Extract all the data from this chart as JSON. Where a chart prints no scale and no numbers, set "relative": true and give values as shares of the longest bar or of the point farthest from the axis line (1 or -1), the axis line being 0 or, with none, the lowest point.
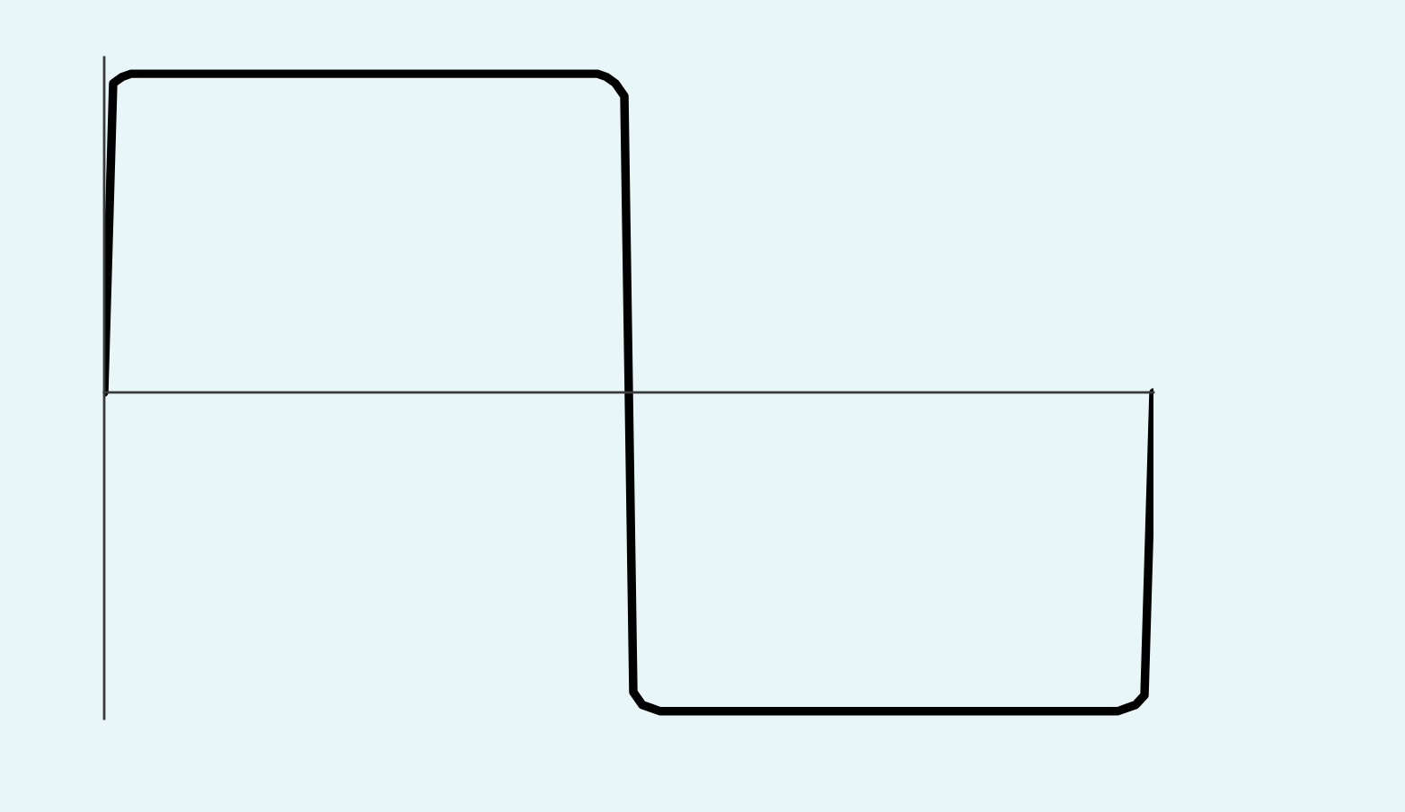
{
  "chart_data": {
    "type": "line",
    "relative": true,
    "categories": [
      null,
      null,
      null,
      null,
      null,
      null,
      null,
      null,
      null,
      null,
      null,
      null,
      null,
      null,
      null,
      null,
      null,
      null,
      null,
      null,
      null,
      null,
      null,
      null,
      null,
      null,
      null,
      null,
      null,
      null,
      null,
      null,
      null,
      null,
      null,
      null,
      null,
      null,
      null,
      null,
      null,
      null,
      null,
      null,
      null,
      null,
      null,
      null,
      null,
      null,
      null,
      null,
      null,
      null,
      null,
      null,
      null,
      null,
      null,
      null,
      null,
      null,
      null,
      null,
      null,
      null,
      null,
      null,
      null,
      null,
      null,
      null,
      null,
      null,
      null,
      null,
      null,
      null,
      null,
      null,
      null,
      null,
      null,
      null,
      null,
      null,
      null,
      null,
      null,
      null,
      null,
      null,
      null,
      null,
      null,
      null,
      null,
      null,
      null,
      null,
      null,
      null,
      null,
      null,
      null,
      null,
      null,
      null,
      null,
      null,
      null,
      null,
      null,
      null,
      null,
      null,
      null,
      null
    ],
    "series": [
      {
        "color": "#000000",
        "values": [
          0,
          0.97,
          0.99,
          1,
          1,
          1,
          1,
          1,
          1,
          1,
          1,
          1,
          1,
          1,
          1,
          1,
          1,
          1,
          1,
          1,
          1,
          1,
          1,
          1,
          1,
          1,
          1,
          1,
          1,
          1,
          1,
          1,
          1,
          1,
          1,
          1,
          1,
          1,
          1,
          1,
          1,
          1,
          1,
          1,
          1,
          1,
          1,
          1,
          1,
          1,
          1,
          1,
          1,
          1,
          1,
          1,
          0.99,
          0.97,
          0.93,
          -0.94,
          -0.98,
          -0.99,
          -1,
          -1,
          -1,
          -1,
          -1,
          -1,
          -1,
          -1,
          -1,
          -1,
          -1,
          -1,
          -1,
          -1,
          -1,
          -1,
          -1,
          -1,
          -1,
          -1,
          -1,
          -1,
          -1,
          -1,
          -1,
          -1,
          -1,
          -1,
          -1,
          -1,
          -1,
          -1,
          -1,
          -1,
          -1,
          -1,
          -1,
          -1,
          -1,
          -1,
          -1,
          -1,
          -1,
          -1,
          -1,
          -1,
          -1,
          -1,
          -1,
          -1,
          -1,
          -1,
          -0.99,
          -0.98,
          -0.95,
          0
        ]
      }
    ],
    "marker": "none",
    "line_style": "solid"
  }
}
